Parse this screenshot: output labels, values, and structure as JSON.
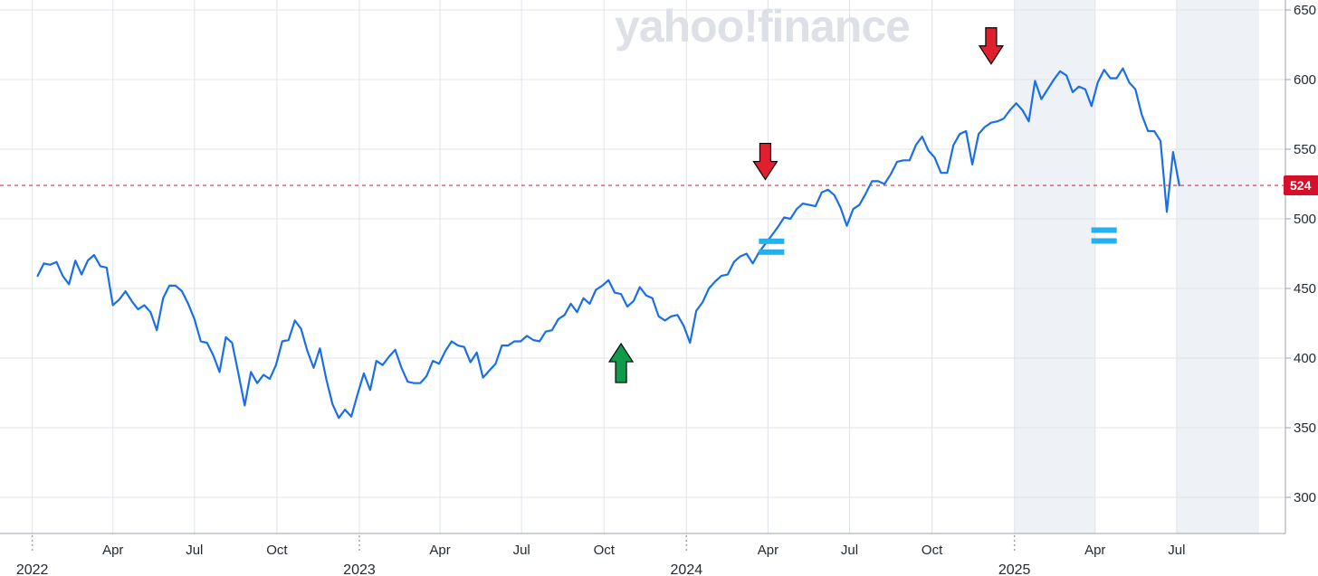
{
  "watermark": "yahoo!finance",
  "colors": {
    "line": "#1a6fe8",
    "grid": "#e0e4ea",
    "highlight": "#eef2f7",
    "reference": "#e0313c",
    "price_tag_bg": "#d6102a",
    "down_arrow": "#e0202e",
    "up_arrow": "#0f9b4a",
    "equals_mark": "#22b1ec"
  },
  "chart_data": {
    "type": "line",
    "x_start": "2022-01-07",
    "x_step_days": 7,
    "ylim": [
      275,
      655
    ],
    "y_ticks": [
      300,
      350,
      400,
      450,
      500,
      550,
      600,
      650
    ],
    "y_tick_labels": [
      "300",
      "350",
      "400",
      "450",
      "500",
      "550",
      "600",
      "650"
    ],
    "x_month_ticks": [
      {
        "date": "2022-01-01",
        "label": "2022",
        "kind": "year"
      },
      {
        "date": "2022-04-01",
        "label": "Apr",
        "kind": "month"
      },
      {
        "date": "2022-07-01",
        "label": "Jul",
        "kind": "month"
      },
      {
        "date": "2022-10-01",
        "label": "Oct",
        "kind": "month"
      },
      {
        "date": "2023-01-01",
        "label": "2023",
        "kind": "year"
      },
      {
        "date": "2023-04-01",
        "label": "Apr",
        "kind": "month"
      },
      {
        "date": "2023-07-01",
        "label": "Jul",
        "kind": "month"
      },
      {
        "date": "2023-10-01",
        "label": "Oct",
        "kind": "month"
      },
      {
        "date": "2024-01-01",
        "label": "2024",
        "kind": "year"
      },
      {
        "date": "2024-04-01",
        "label": "Apr",
        "kind": "month"
      },
      {
        "date": "2024-07-01",
        "label": "Jul",
        "kind": "month"
      },
      {
        "date": "2024-10-01",
        "label": "Oct",
        "kind": "month"
      },
      {
        "date": "2025-01-01",
        "label": "2025",
        "kind": "year"
      },
      {
        "date": "2025-04-01",
        "label": "Apr",
        "kind": "month"
      },
      {
        "date": "2025-07-01",
        "label": "Jul",
        "kind": "month"
      }
    ],
    "x_end": "2025-10-01",
    "highlight_ranges": [
      {
        "from": "2025-01-01",
        "to": "2025-04-01"
      },
      {
        "from": "2025-07-01",
        "to": "2025-10-01"
      }
    ],
    "reference_line": {
      "value": 524,
      "label": "524"
    },
    "series": [
      {
        "values": [
          459,
          468,
          467,
          469,
          459,
          453,
          470,
          460,
          470,
          474,
          466,
          465,
          438,
          442,
          448,
          441,
          435,
          438,
          433,
          420,
          443,
          452,
          452,
          448,
          439,
          428,
          412,
          411,
          402,
          390,
          415,
          411,
          389,
          366,
          390,
          382,
          388,
          385,
          395,
          412,
          413,
          427,
          421,
          405,
          393,
          407,
          385,
          367,
          357,
          363,
          358,
          374,
          389,
          377,
          398,
          395,
          401,
          406,
          393,
          383,
          382,
          382,
          387,
          398,
          396,
          405,
          412,
          409,
          408,
          397,
          404,
          386,
          391,
          396,
          409,
          409,
          412,
          412,
          416,
          413,
          412,
          419,
          420,
          428,
          431,
          439,
          433,
          443,
          439,
          449,
          452,
          456,
          447,
          446,
          437,
          441,
          451,
          445,
          443,
          430,
          427,
          430,
          431,
          423,
          411,
          434,
          440,
          450,
          455,
          459,
          460,
          469,
          473,
          475,
          468,
          476,
          482,
          488,
          494,
          501,
          500,
          507,
          511,
          510,
          509,
          519,
          521,
          517,
          508,
          495,
          507,
          510,
          518,
          527,
          527,
          525,
          532,
          541,
          542,
          542,
          553,
          559,
          549,
          544,
          533,
          533,
          553,
          561,
          563,
          539,
          561,
          566,
          569,
          570,
          572,
          578,
          583,
          578,
          570,
          599,
          586,
          593,
          600,
          606,
          603,
          591,
          595,
          593,
          581,
          598,
          607,
          601,
          601,
          608,
          598,
          593,
          575,
          563,
          563,
          556,
          505,
          548,
          524
        ]
      }
    ],
    "annotations": [
      {
        "type": "down-arrow",
        "date": "2024-03-29",
        "value": 523
      },
      {
        "type": "down-arrow",
        "date": "2024-12-06",
        "value": 606
      },
      {
        "type": "up-arrow",
        "date": "2023-10-20",
        "value": 411
      },
      {
        "type": "equals",
        "date": "2024-04-05",
        "value": 480
      },
      {
        "type": "equals",
        "date": "2025-04-11",
        "value": 488
      }
    ]
  }
}
